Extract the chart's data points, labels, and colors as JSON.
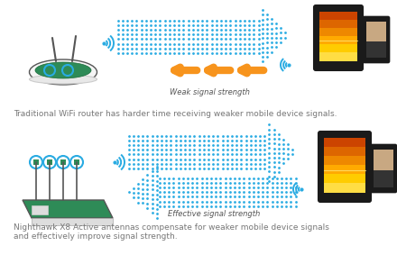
{
  "bg_color": "#ffffff",
  "fig_width": 4.4,
  "fig_height": 2.93,
  "dpi": 100,
  "top_caption": "Traditional WiFi router has harder time receiving weaker mobile device signals.",
  "bottom_caption_line1": "Nighthawk X8 Active antennas compensate for weaker mobile device signals",
  "bottom_caption_line2": "and effectively improve signal strength.",
  "weak_label": "Weak signal strength",
  "effective_label": "Effective signal strength",
  "blue": "#29ABE2",
  "orange": "#F7941D",
  "gray": "#888888",
  "dark_gray": "#555555",
  "green": "#2E8B57",
  "black": "#111111"
}
